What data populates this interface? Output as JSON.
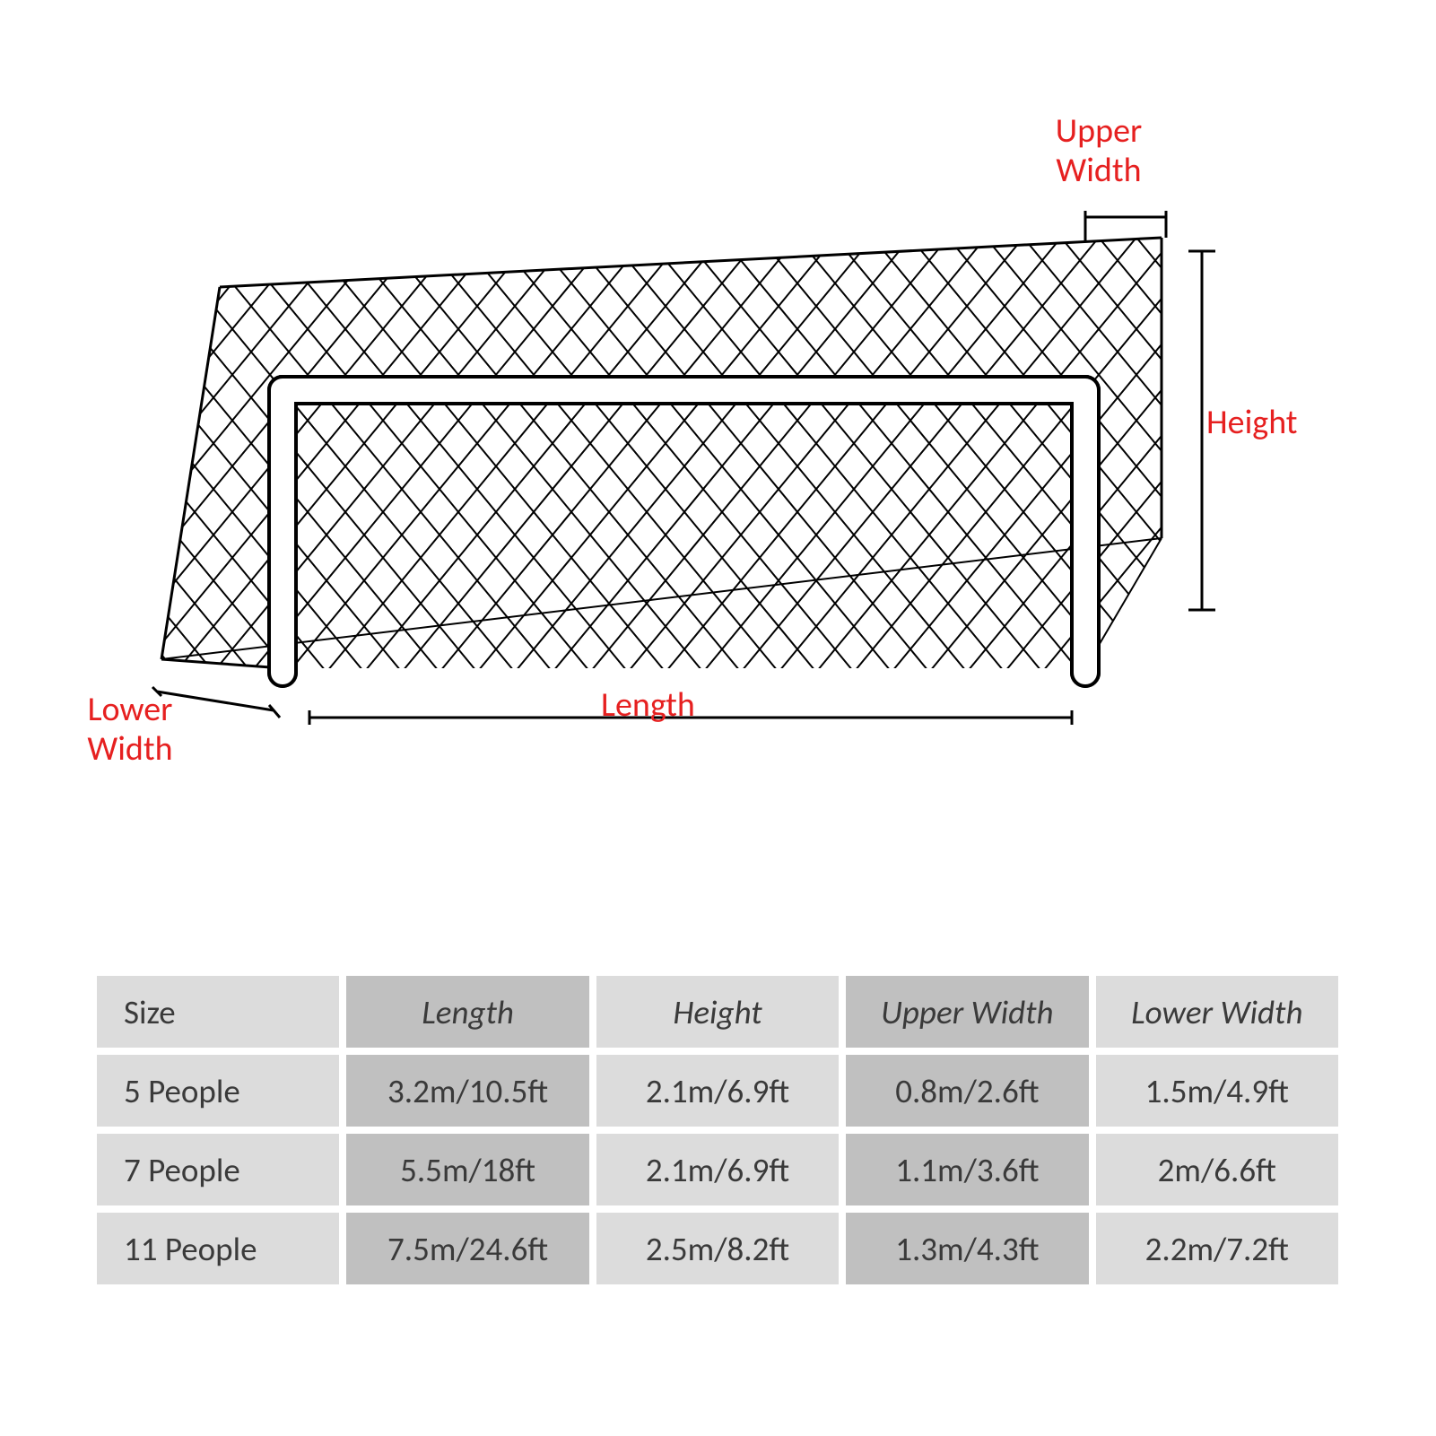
{
  "diagram": {
    "labels": {
      "upper_width": "Upper\nWidth",
      "height": "Height",
      "length": "Length",
      "lower_width": "Lower\nWidth"
    },
    "label_color": "#e62020",
    "label_fontsize": 38,
    "stroke_color": "#000000",
    "stroke_width_frame": 4,
    "stroke_width_net": 2,
    "background_color": "#ffffff"
  },
  "table": {
    "columns": [
      "Size",
      "Length",
      "Height",
      "Upper Width",
      "Lower Width"
    ],
    "rows": [
      [
        "5 People",
        "3.2m/10.5ft",
        "2.1m/6.9ft",
        "0.8m/2.6ft",
        "1.5m/4.9ft"
      ],
      [
        "7 People",
        "5.5m/18ft",
        "2.1m/6.9ft",
        "1.1m/3.6ft",
        "2m/6.6ft"
      ],
      [
        "11 People",
        "7.5m/24.6ft",
        "2.5m/8.2ft",
        "1.3m/4.3ft",
        "2.2m/7.2ft"
      ]
    ],
    "cell_fontsize": 37,
    "text_color": "#3a3a3a",
    "shade_light": "#dcdcdc",
    "shade_dark": "#c0c0c0",
    "gap": 8
  }
}
